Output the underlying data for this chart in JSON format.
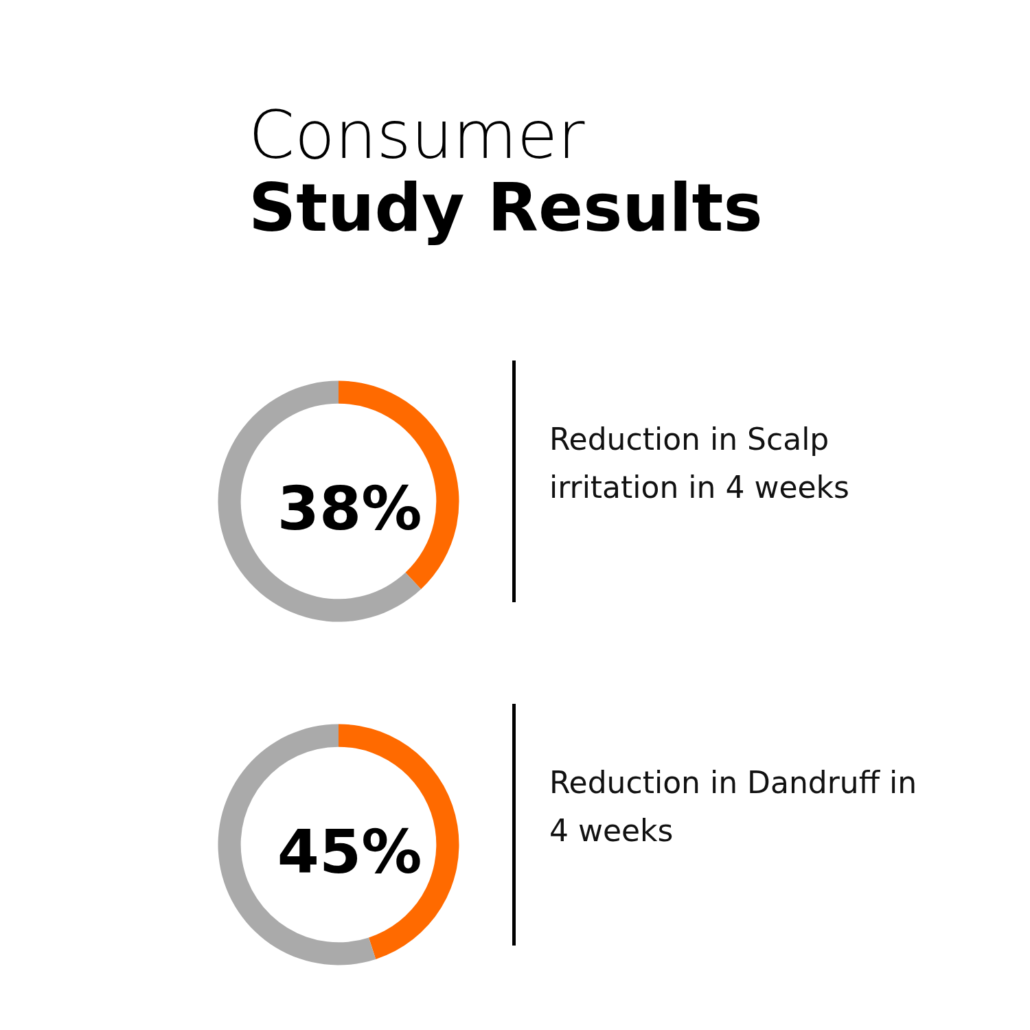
{
  "chart_data": [
    {
      "type": "donut",
      "title": "Consumer Study Results",
      "categories": [
        null,
        null
      ],
      "values": [
        38,
        62
      ],
      "colors": [
        "#ff6a00",
        "#aaaaaa"
      ],
      "value_labels": [
        "38%",
        null
      ],
      "annotations": [
        "Reduction in Scalp irritation in 4 weeks"
      ]
    },
    {
      "type": "donut",
      "categories": [
        null,
        null
      ],
      "values": [
        45,
        55
      ],
      "colors": [
        "#ff6a00",
        "#aaaaaa"
      ],
      "value_labels": [
        "45%",
        null
      ],
      "annotations": [
        "Reduction in Dandruff in 4 weeks"
      ]
    }
  ]
}
